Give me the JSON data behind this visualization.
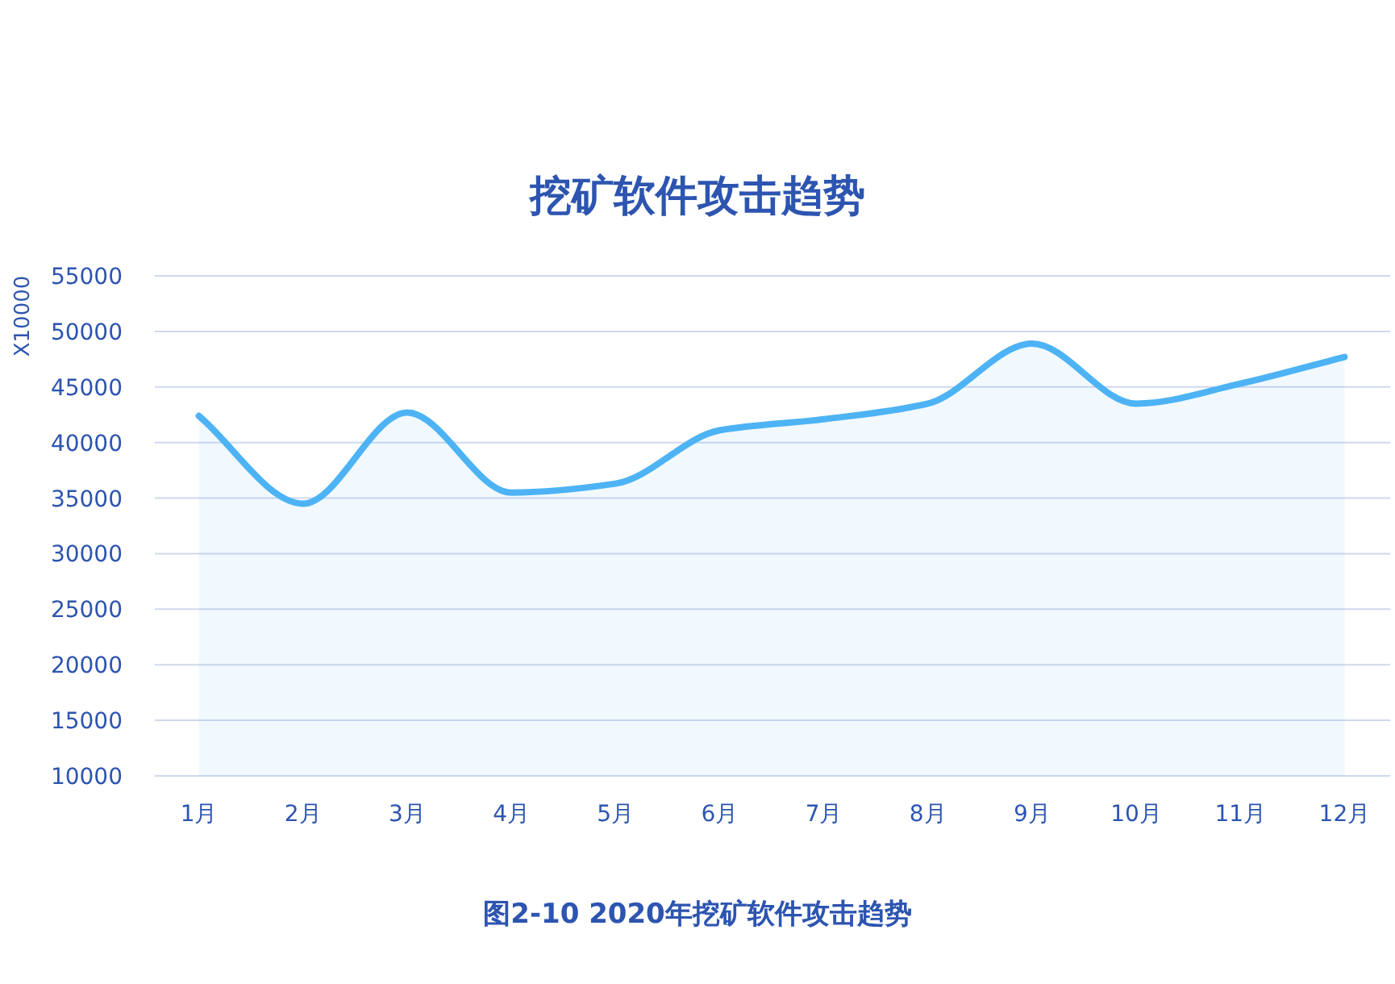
{
  "chart_data": {
    "type": "area",
    "title": "挖矿软件攻击趋势",
    "ylabel": "X10000",
    "categories": [
      "1月",
      "2月",
      "3月",
      "4月",
      "5月",
      "6月",
      "7月",
      "8月",
      "9月",
      "10月",
      "11月",
      "12月"
    ],
    "series": [
      {
        "color": "#4db3f5",
        "values": [
          42400,
          34500,
          42700,
          35500,
          36300,
          41100,
          42100,
          43500,
          48900,
          43500,
          45300,
          47700
        ]
      }
    ],
    "ylim": [
      10000,
      55000
    ],
    "yticks": [
      10000,
      15000,
      20000,
      25000,
      30000,
      35000,
      40000,
      45000,
      50000,
      55000
    ],
    "grid": "y",
    "annotations": [
      "图2-10 2020年挖矿软件攻击趋势"
    ]
  }
}
